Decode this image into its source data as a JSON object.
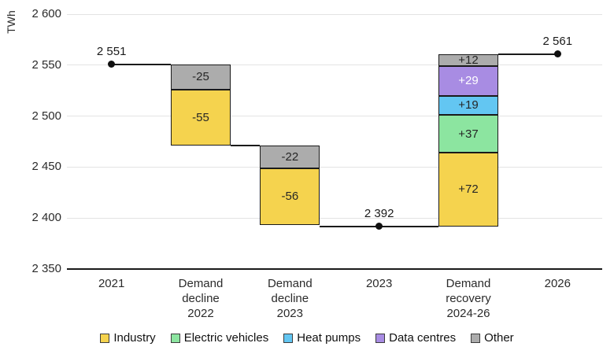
{
  "y_axis": {
    "unit": "TWh",
    "min": 2350,
    "max": 2600,
    "ticks": [
      {
        "value": 2350,
        "label": "2 350"
      },
      {
        "value": 2400,
        "label": "2 400"
      },
      {
        "value": 2450,
        "label": "2 450"
      },
      {
        "value": 2500,
        "label": "2 500"
      },
      {
        "value": 2550,
        "label": "2 550"
      },
      {
        "value": 2600,
        "label": "2 600"
      }
    ]
  },
  "series_colors": {
    "Industry": "#F5D34E",
    "Electric vehicles": "#8CE5A0",
    "Heat pumps": "#63C6F2",
    "Data centres": "#A88CE3",
    "Other": "#ACACAC"
  },
  "chart_data": {
    "type": "waterfall",
    "unit": "TWh",
    "grid": true,
    "columns": [
      {
        "label_lines": [
          "2021"
        ],
        "kind": "point",
        "value": 2551,
        "value_label": "2 551"
      },
      {
        "label_lines": [
          "Demand",
          "decline",
          "2022"
        ],
        "kind": "bar",
        "segments": [
          {
            "series": "Other",
            "value": -25,
            "label": "-25"
          },
          {
            "series": "Industry",
            "value": -55,
            "label": "-55"
          }
        ]
      },
      {
        "label_lines": [
          "Demand",
          "decline",
          "2023"
        ],
        "kind": "bar",
        "segments": [
          {
            "series": "Other",
            "value": -22,
            "label": "-22"
          },
          {
            "series": "Industry",
            "value": -56,
            "label": "-56"
          }
        ]
      },
      {
        "label_lines": [
          "2023"
        ],
        "kind": "point",
        "value": 2392,
        "value_label": "2 392"
      },
      {
        "label_lines": [
          "Demand",
          "recovery",
          "2024-26"
        ],
        "kind": "bar",
        "segments": [
          {
            "series": "Industry",
            "value": 72,
            "label": "+72"
          },
          {
            "series": "Electric vehicles",
            "value": 37,
            "label": "+37"
          },
          {
            "series": "Heat pumps",
            "value": 19,
            "label": "+19"
          },
          {
            "series": "Data centres",
            "value": 29,
            "label": "+29",
            "label_color": "#ffffff"
          },
          {
            "series": "Other",
            "value": 12,
            "label": "+12"
          }
        ]
      },
      {
        "label_lines": [
          "2026"
        ],
        "kind": "point",
        "value": 2561,
        "value_label": "2 561"
      }
    ]
  },
  "legend": [
    {
      "label": "Industry",
      "series": "Industry"
    },
    {
      "label": "Electric vehicles",
      "series": "Electric vehicles"
    },
    {
      "label": "Heat pumps",
      "series": "Heat pumps"
    },
    {
      "label": "Data centres",
      "series": "Data centres"
    },
    {
      "label": "Other",
      "series": "Other"
    }
  ]
}
